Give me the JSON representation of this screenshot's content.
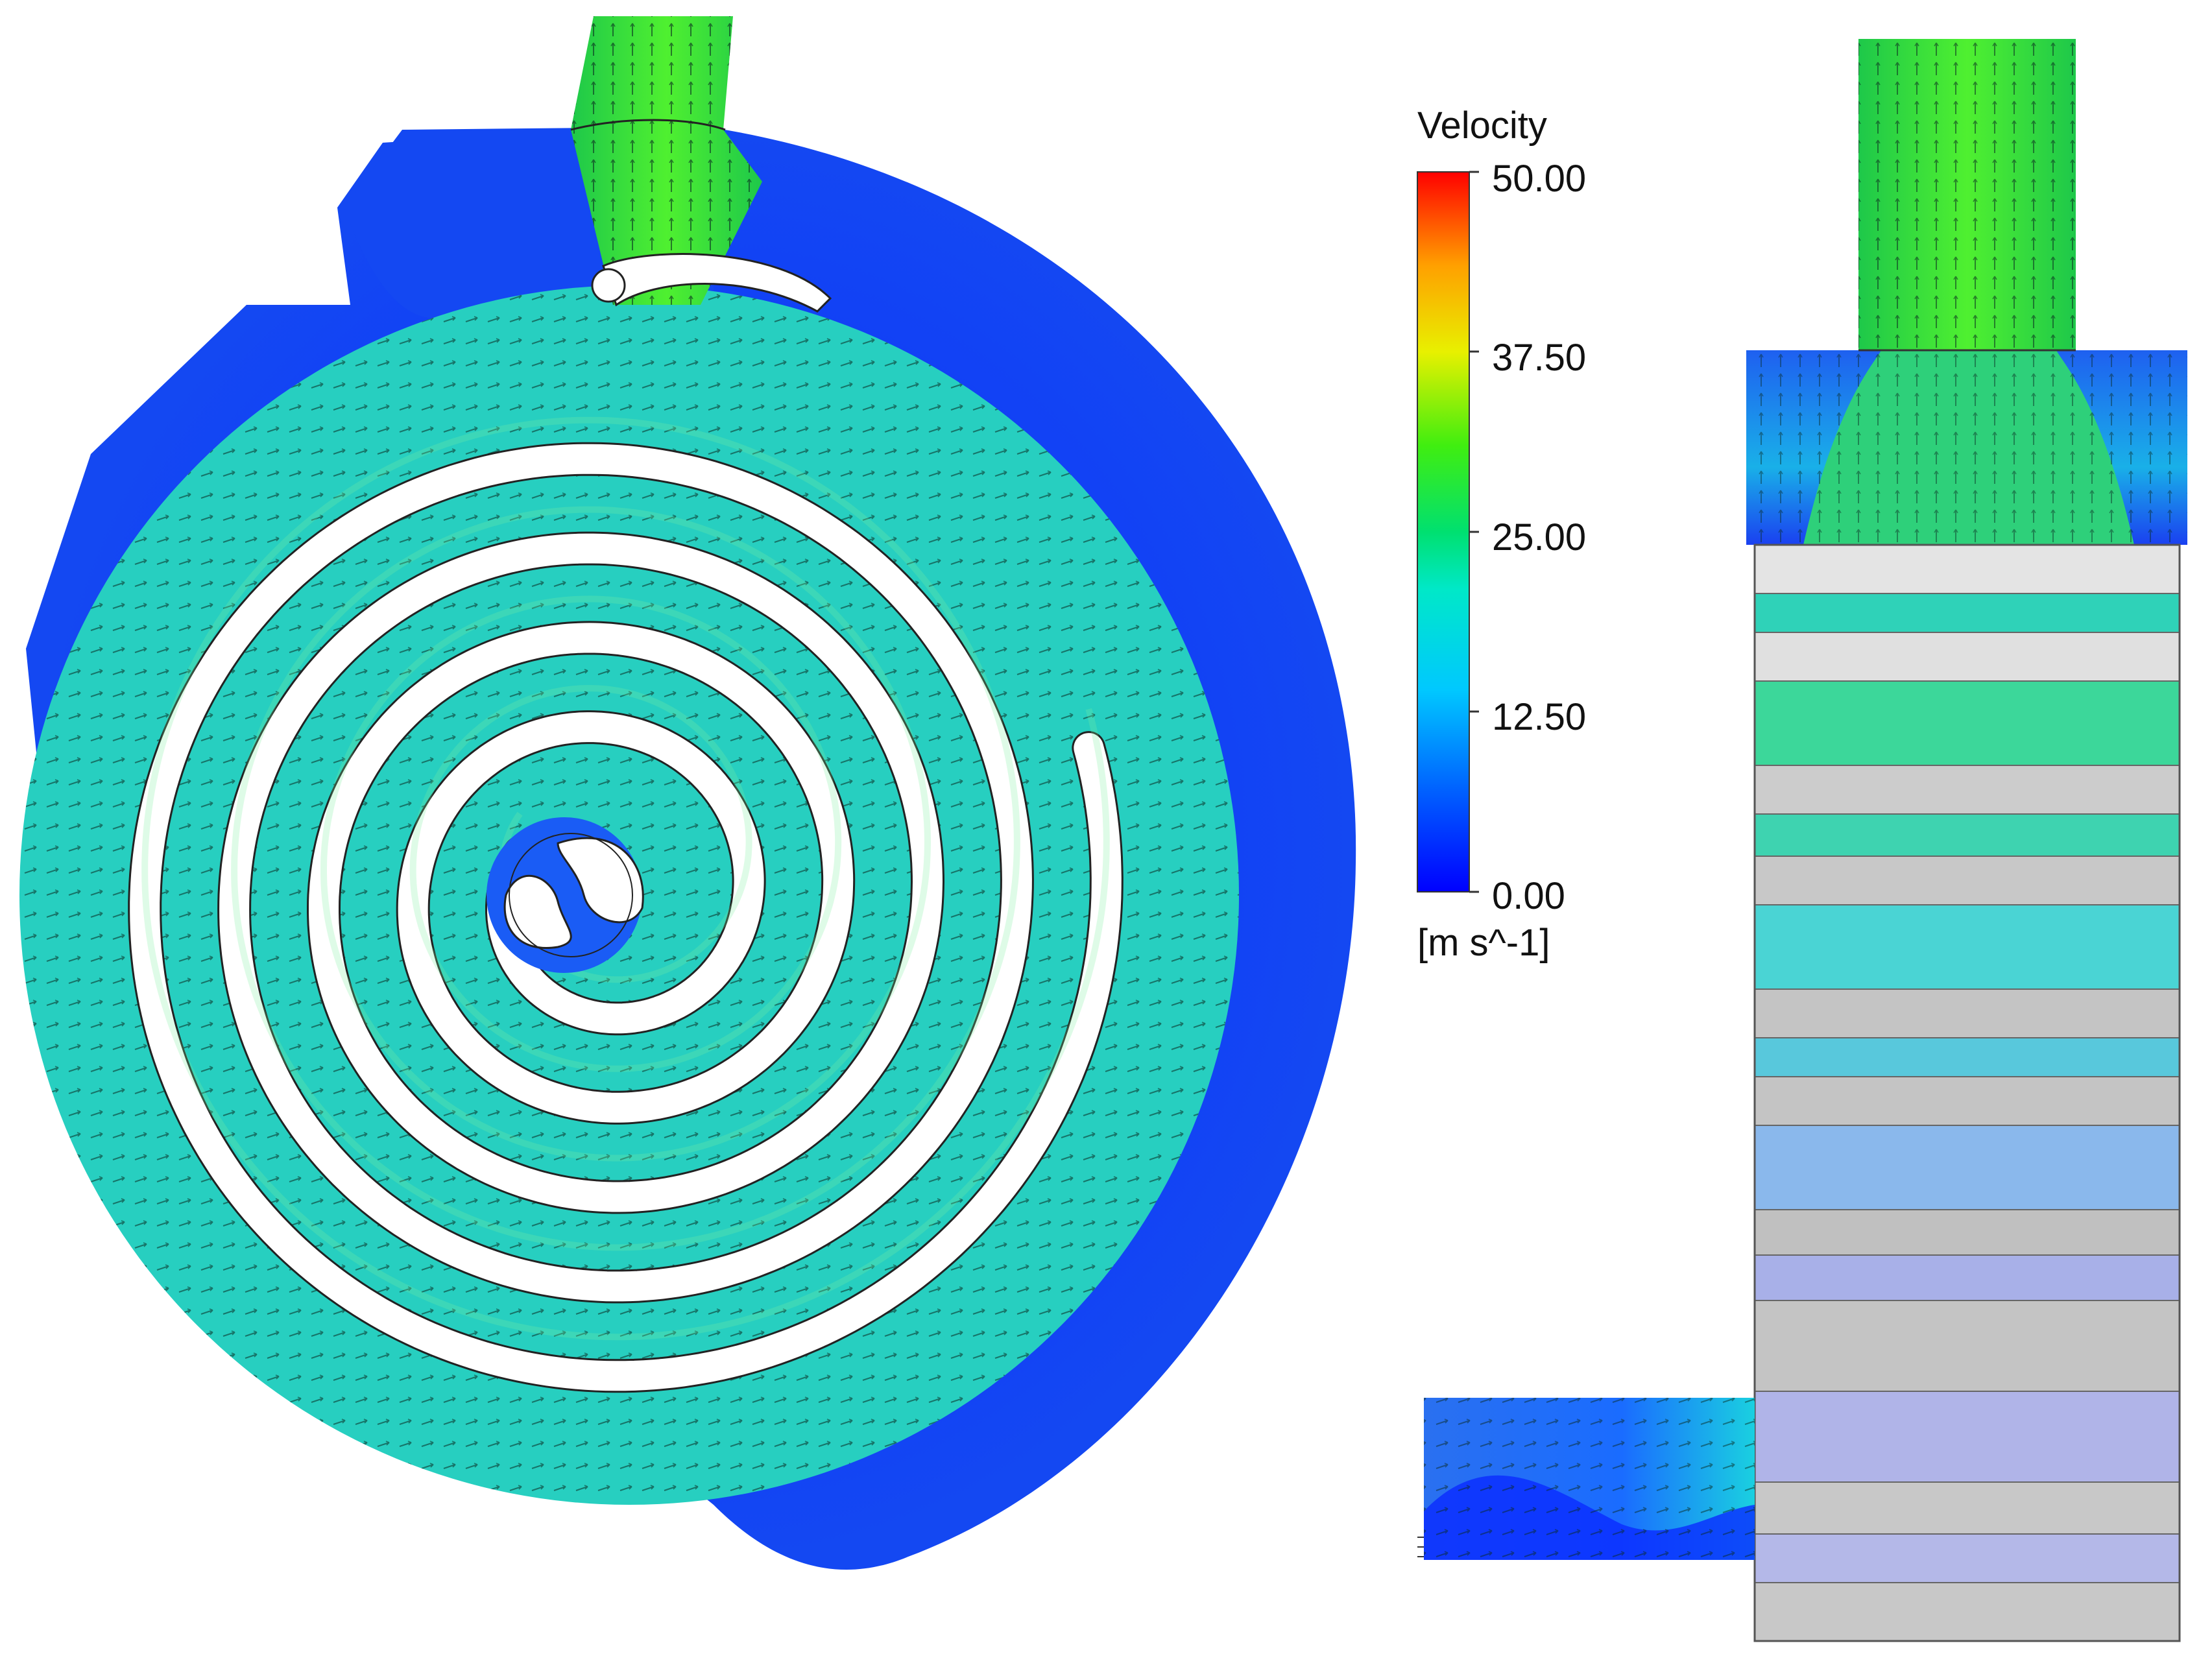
{
  "legend": {
    "title": "Velocity",
    "units": "[m s^-1]",
    "ticks": [
      "50.00",
      "37.50",
      "25.00",
      "12.50",
      "0.00"
    ],
    "range": [
      0,
      50
    ],
    "colormap": [
      "#0000ff",
      "#00a8ff",
      "#00e5ff",
      "#00e070",
      "#5ff000",
      "#f4f400",
      "#ffa000",
      "#ff0000"
    ]
  },
  "colors": {
    "low": "#1a3cff",
    "mid": "#1ad8e0",
    "high": "#2ee06a",
    "spacer": "#d0d0d0",
    "arrow": "#0a2a20"
  }
}
